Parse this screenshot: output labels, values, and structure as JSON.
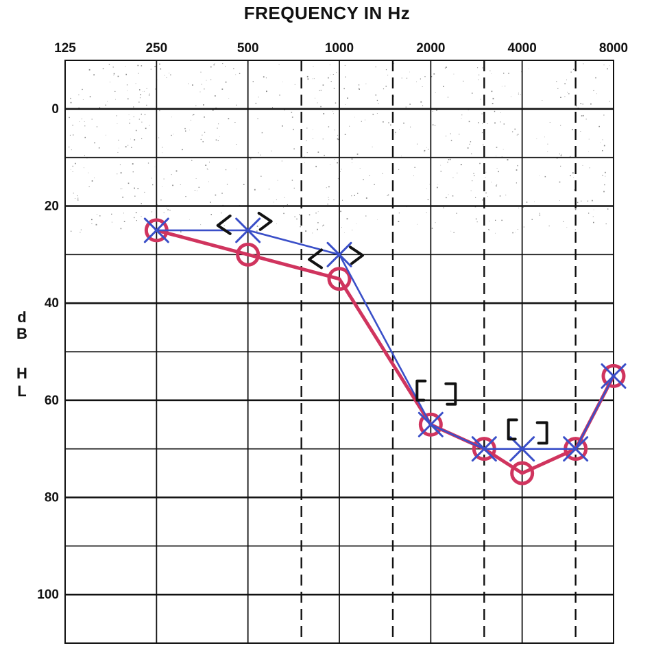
{
  "chart_data": {
    "type": "line",
    "title": "FREQUENCY IN Hz",
    "ylabel_chars": [
      "d",
      "B",
      "H",
      "L"
    ],
    "x_ticks": [
      "125",
      "250",
      "500",
      "1000",
      "2000",
      "4000",
      "8000"
    ],
    "x_scale": "log2",
    "xlim_hz": [
      125,
      8000
    ],
    "y_ticks": [
      "0",
      "20",
      "40",
      "60",
      "80",
      "100"
    ],
    "ylim": [
      -10,
      110
    ],
    "y_inverted": true,
    "grid": true,
    "dashed_intermediate_frequencies_hz": [
      750,
      1500,
      3000,
      6000
    ],
    "series": [
      {
        "marker": "circle",
        "color": "#d0345e",
        "x_hz": [
          250,
          500,
          1000,
          2000,
          3000,
          4000,
          6000,
          8000
        ],
        "y_db": [
          25,
          30,
          35,
          65,
          70,
          75,
          70,
          55
        ]
      },
      {
        "marker": "cross",
        "color": "#3a4fc8",
        "x_hz": [
          250,
          500,
          1000,
          2000,
          3000,
          4000,
          6000,
          8000
        ],
        "y_db": [
          25,
          25,
          30,
          65,
          70,
          70,
          70,
          55
        ]
      }
    ],
    "bone_conduction_marks": [
      {
        "symbol": "<>",
        "x_hz": 500,
        "y_db": 24
      },
      {
        "symbol": "<>",
        "x_hz": 1000,
        "y_db": 31
      },
      {
        "symbol": "[]",
        "x_hz": 2000,
        "y_db": 58
      },
      {
        "symbol": "[]",
        "x_hz": 4000,
        "y_db": 66
      }
    ]
  }
}
